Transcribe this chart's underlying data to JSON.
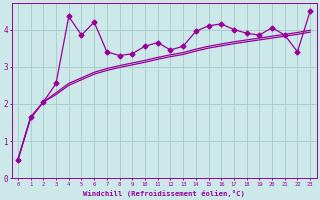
{
  "bg_color": "#cce8e8",
  "line_color": "#990099",
  "grid_color": "#aacfcf",
  "xlabel": "Windchill (Refroidissement éolien,°C)",
  "ylim": [
    0,
    4.7
  ],
  "xlim": [
    -0.5,
    23.5
  ],
  "yticks": [
    0,
    1,
    2,
    3,
    4
  ],
  "xticks": [
    0,
    1,
    2,
    3,
    4,
    5,
    6,
    7,
    8,
    9,
    10,
    11,
    12,
    13,
    14,
    15,
    16,
    17,
    18,
    19,
    20,
    21,
    22,
    23
  ],
  "series1_x": [
    0,
    1,
    2,
    3,
    4,
    5,
    6,
    7,
    8,
    9,
    10,
    11,
    12,
    13,
    14,
    15,
    16,
    17,
    18,
    19,
    20,
    21,
    22,
    23
  ],
  "series1_y": [
    0.5,
    1.65,
    2.05,
    2.55,
    4.35,
    3.85,
    4.2,
    3.4,
    3.3,
    3.35,
    3.55,
    3.65,
    3.45,
    3.55,
    3.95,
    4.1,
    4.15,
    4.0,
    3.9,
    3.85,
    4.05,
    3.85,
    3.4,
    4.5
  ],
  "series2_x": [
    0,
    1,
    2,
    3,
    4,
    5,
    6,
    7,
    8,
    9,
    10,
    11,
    12,
    13,
    14,
    15,
    16,
    17,
    18,
    19,
    20,
    21,
    22,
    23
  ],
  "series2_y": [
    0.5,
    1.62,
    2.05,
    2.25,
    2.5,
    2.65,
    2.8,
    2.9,
    2.98,
    3.05,
    3.12,
    3.2,
    3.27,
    3.33,
    3.42,
    3.5,
    3.56,
    3.62,
    3.67,
    3.72,
    3.77,
    3.82,
    3.87,
    3.93
  ],
  "series3_x": [
    0,
    1,
    2,
    3,
    4,
    5,
    6,
    7,
    8,
    9,
    10,
    11,
    12,
    13,
    14,
    15,
    16,
    17,
    18,
    19,
    20,
    21,
    22,
    23
  ],
  "series3_y": [
    0.5,
    1.62,
    2.05,
    2.3,
    2.55,
    2.7,
    2.85,
    2.95,
    3.03,
    3.1,
    3.17,
    3.25,
    3.32,
    3.38,
    3.47,
    3.55,
    3.61,
    3.67,
    3.72,
    3.77,
    3.82,
    3.87,
    3.92,
    3.98
  ],
  "markersize": 2.5,
  "linewidth": 0.9
}
